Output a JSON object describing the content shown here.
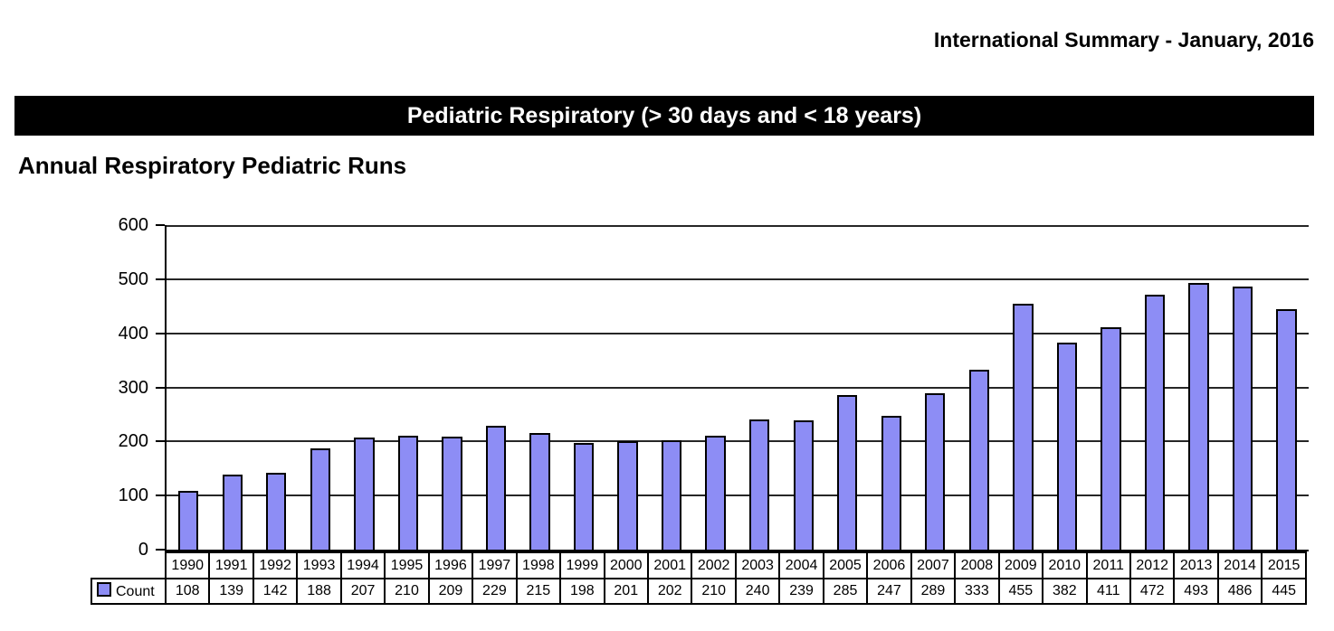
{
  "page": {
    "header_title": "International Summary - January, 2016",
    "banner_title": "Pediatric Respiratory (> 30 days and < 18 years)",
    "section_title": "Annual Respiratory Pediatric Runs"
  },
  "chart_data": {
    "type": "bar",
    "title": "Annual Respiratory Pediatric Runs",
    "categories": [
      "1990",
      "1991",
      "1992",
      "1993",
      "1994",
      "1995",
      "1996",
      "1997",
      "1998",
      "1999",
      "2000",
      "2001",
      "2002",
      "2003",
      "2004",
      "2005",
      "2006",
      "2007",
      "2008",
      "2009",
      "2010",
      "2011",
      "2012",
      "2013",
      "2014",
      "2015"
    ],
    "series": [
      {
        "name": "Count",
        "values": [
          108,
          139,
          142,
          188,
          207,
          210,
          209,
          229,
          215,
          198,
          201,
          202,
          210,
          240,
          239,
          285,
          247,
          289,
          333,
          455,
          382,
          411,
          472,
          493,
          486,
          445
        ]
      }
    ],
    "xlabel": "",
    "ylabel": "",
    "ylim": [
      0,
      600
    ],
    "yticks": [
      600,
      500,
      400,
      300,
      200,
      100,
      0
    ],
    "grid": true,
    "legend_position": "bottom-left-table",
    "colors": {
      "bar_fill": "#8d8df5",
      "bar_border": "#000000",
      "grid_line": "#262626",
      "banner_bg": "#000000",
      "banner_text": "#ffffff"
    }
  }
}
